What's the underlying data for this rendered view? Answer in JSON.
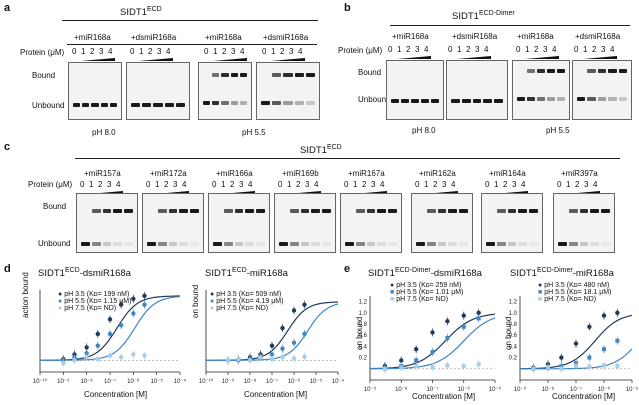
{
  "panels": {
    "a": {
      "label": "a",
      "title_main": "SIDT1",
      "title_sup": "ECD",
      "groups": [
        "+miR168a",
        "+dsmiR168a",
        "+miR168a",
        "+dsmiR168a"
      ],
      "protein_label": "Protein (μM)",
      "lanes": [
        "0",
        "1",
        "2",
        "3",
        "4"
      ],
      "bound": "Bound",
      "unbound": "Unbound",
      "ph_left": "pH 8.0",
      "ph_right": "pH 5.5"
    },
    "b": {
      "label": "b",
      "title_main": "SIDT1",
      "title_sup": "ECD-Dimer",
      "groups": [
        "+miR168a",
        "+dsmiR168a",
        "+miR168a",
        "+dsmiR168a"
      ],
      "protein_label": "Protein (μM)",
      "lanes": [
        "0",
        "1",
        "2",
        "3",
        "4"
      ],
      "bound": "Bound",
      "unbound": "Unbound",
      "ph_left": "pH 8.0",
      "ph_right": "pH 5.5"
    },
    "c": {
      "label": "c",
      "title_main": "SIDT1",
      "title_sup": "ECD",
      "groups": [
        "+miR157a",
        "+miR172a",
        "+miR166a",
        "+miR169b",
        "+miR167a",
        "+miR162a",
        "+miR164a",
        "+miR397a"
      ],
      "protein_label": "Protein (μM)",
      "lanes": [
        "0",
        "1",
        "2",
        "3",
        "4"
      ],
      "bound": "Bound",
      "unbound": "Unbound"
    },
    "d": {
      "label": "d",
      "left_title_main": "SIDT1",
      "left_title_sup": "ECD",
      "left_title_tail": "-dsmiR168a",
      "right_title_main": "SIDT1",
      "right_title_sup": "ECD",
      "right_title_tail": "-miR168a",
      "left_legend": [
        "pH 3.5 (Kᴅ= 199 nM)",
        "pH 5.5 (Kᴅ= 1.15 μM)",
        "pH 7.5 (Kᴅ= ND)"
      ],
      "right_legend": [
        "pH 3.5 (Kᴅ= 509 nM)",
        "pH 5.5 (Kᴅ= 4.19 μM)",
        "pH 7.5 (Kᴅ= ND)"
      ],
      "left_ylabel": "action bound",
      "right_ylabel": "on bound",
      "xlabel": "Concentration [M]"
    },
    "e": {
      "label": "e",
      "left_title_main": "SIDT1",
      "left_title_sup": "ECD-Dimer",
      "left_title_tail": "-dsmiR168a",
      "right_title_main": "SIDT1",
      "right_title_sup": "ECD-Dimer",
      "right_title_tail": "-miR168a",
      "left_legend": [
        "pH 3.5 (Kᴅ= 259 nM)",
        "pH 5.5 (Kᴅ= 1.01 μM)",
        "pH 7.5 (Kᴅ= ND)"
      ],
      "right_legend": [
        "pH 3.5 (Kᴅ= 480 nM)",
        "pH 5.5 (Kᴅ= 18.1 μM)",
        "pH 7.5 (Kᴅ= ND)"
      ],
      "ylabel": "on bound",
      "xlabel": "Concentration [M]",
      "left_yticks": [
        "1.2",
        "1.0",
        "0.8",
        "0.6",
        "0.4",
        "0.2"
      ],
      "right_yticks": [
        "1.2",
        "1.0",
        "0.8",
        "0.6",
        "0.4",
        "0.2"
      ]
    }
  },
  "colors": {
    "ph35": "#1f3b5a",
    "ph55": "#3f86c4",
    "ph75": "#a9cde6"
  },
  "chart_data": [
    {
      "type": "scatter",
      "title": "SIDT1ECD-dsmiR168a",
      "xlabel": "Concentration [M]",
      "xscale": "log",
      "xlim": [
        1e-10,
        0.0001
      ],
      "xticks": [
        "10⁻¹⁰",
        "10⁻⁹",
        "10⁻⁸",
        "10⁻⁷",
        "10⁻⁶",
        "10⁻⁵",
        "10⁻⁴"
      ],
      "series": [
        {
          "name": "pH 3.5 (KD= 199 nM)",
          "kd": 1.99e-07,
          "top": 1.1,
          "x": [
            1e-09,
            3e-09,
            1e-08,
            3e-08,
            1e-07,
            3e-07,
            1e-06,
            3e-06
          ],
          "y": [
            0.02,
            0.1,
            0.22,
            0.45,
            0.7,
            0.95,
            1.05,
            1.1
          ]
        },
        {
          "name": "pH 5.5 (KD= 1.15 μM)",
          "kd": 1.15e-06,
          "top": 1.1,
          "x": [
            1e-09,
            3e-09,
            1e-08,
            3e-08,
            1e-07,
            3e-07,
            1e-06,
            3e-06
          ],
          "y": [
            0.0,
            0.05,
            0.12,
            0.25,
            0.45,
            0.6,
            0.8,
            0.95
          ]
        },
        {
          "name": "pH 7.5 (KD= ND)",
          "kd": null,
          "x": [
            1e-09,
            3e-09,
            1e-08,
            3e-08,
            1e-07,
            3e-07,
            1e-06,
            3e-06
          ],
          "y": [
            -0.05,
            0.0,
            0.05,
            0.02,
            0.08,
            0.05,
            0.1,
            0.08
          ]
        }
      ]
    },
    {
      "type": "scatter",
      "title": "SIDT1ECD-miR168a",
      "xlabel": "Concentration [M]",
      "xscale": "log",
      "xlim": [
        1e-10,
        0.0001
      ],
      "xticks": [
        "10⁻¹⁰",
        "10⁻⁹",
        "10⁻⁸",
        "10⁻⁷",
        "10⁻⁶",
        "10⁻⁵",
        "10⁻⁴"
      ],
      "series": [
        {
          "name": "pH 3.5 (KD= 509 nM)",
          "kd": 5.09e-07,
          "top": 1.0,
          "x": [
            1e-09,
            3e-09,
            1e-08,
            3e-08,
            1e-07,
            3e-07,
            1e-06,
            3e-06
          ],
          "y": [
            0.0,
            0.02,
            0.05,
            0.1,
            0.25,
            0.55,
            0.85,
            0.95
          ]
        },
        {
          "name": "pH 5.5 (KD= 4.19 μM)",
          "kd": 4.19e-06,
          "top": 1.0,
          "x": [
            1e-09,
            3e-09,
            1e-08,
            3e-08,
            1e-07,
            3e-07,
            1e-06,
            3e-06
          ],
          "y": [
            0.0,
            0.0,
            0.02,
            0.05,
            0.1,
            0.2,
            0.3,
            0.45
          ]
        },
        {
          "name": "pH 7.5 (KD= ND)",
          "kd": null,
          "x": [
            1e-09,
            3e-09,
            1e-08,
            3e-08,
            1e-07,
            3e-07,
            1e-06,
            3e-06
          ],
          "y": [
            0.0,
            0.02,
            0.0,
            0.05,
            0.02,
            0.05,
            0.03,
            0.06
          ]
        }
      ]
    },
    {
      "type": "scatter",
      "title": "SIDT1ECD-Dimer-dsmiR168a",
      "xlabel": "Concentration [M]",
      "xscale": "log",
      "xlim": [
        1e-09,
        1e-05
      ],
      "xticks": [
        "10⁻⁹",
        "10⁻⁸",
        "10⁻⁷",
        "10⁻⁶",
        "10⁻⁵"
      ],
      "series": [
        {
          "name": "pH 3.5 (KD= 259 nM)",
          "kd": 2.59e-07,
          "top": 1.0,
          "x": [
            3e-09,
            1e-08,
            3e-08,
            1e-07,
            3e-07,
            1e-06,
            3e-06
          ],
          "y": [
            0.05,
            0.15,
            0.35,
            0.65,
            0.85,
            0.95,
            1.0
          ]
        },
        {
          "name": "pH 5.5 (KD= 1.01 μM)",
          "kd": 1.01e-06,
          "top": 1.0,
          "x": [
            3e-09,
            1e-08,
            3e-08,
            1e-07,
            3e-07,
            1e-06,
            3e-06
          ],
          "y": [
            0.0,
            0.05,
            0.15,
            0.3,
            0.55,
            0.75,
            0.9
          ]
        },
        {
          "name": "pH 7.5 (KD= ND)",
          "kd": null,
          "x": [
            3e-09,
            1e-08,
            3e-08,
            1e-07,
            3e-07,
            1e-06,
            3e-06
          ],
          "y": [
            0.0,
            0.02,
            0.05,
            0.03,
            0.06,
            0.05,
            0.08
          ]
        }
      ]
    },
    {
      "type": "scatter",
      "title": "SIDT1ECD-Dimer-miR168a",
      "xlabel": "Concentration [M]",
      "xscale": "log",
      "xlim": [
        1e-09,
        1e-05
      ],
      "xticks": [
        "10⁻⁹",
        "10⁻⁸",
        "10⁻⁷",
        "10⁻⁶",
        "10⁻⁵"
      ],
      "series": [
        {
          "name": "pH 3.5 (KD= 480 nM)",
          "kd": 4.8e-07,
          "top": 1.0,
          "x": [
            3e-09,
            1e-08,
            3e-08,
            1e-07,
            3e-07,
            1e-06,
            3e-06
          ],
          "y": [
            0.02,
            0.08,
            0.2,
            0.45,
            0.75,
            0.95,
            1.0
          ]
        },
        {
          "name": "pH 5.5 (KD= 18.1 μM)",
          "kd": 1.81e-05,
          "top": 1.0,
          "x": [
            3e-09,
            1e-08,
            3e-08,
            1e-07,
            3e-07,
            1e-06,
            3e-06
          ],
          "y": [
            0.0,
            0.02,
            0.05,
            0.1,
            0.2,
            0.35,
            0.5
          ]
        },
        {
          "name": "pH 7.5 (KD= ND)",
          "kd": null,
          "x": [
            3e-09,
            1e-08,
            3e-08,
            1e-07,
            3e-07,
            1e-06,
            3e-06
          ],
          "y": [
            0.0,
            0.03,
            0.0,
            0.05,
            0.04,
            0.06,
            0.05
          ]
        }
      ]
    }
  ]
}
